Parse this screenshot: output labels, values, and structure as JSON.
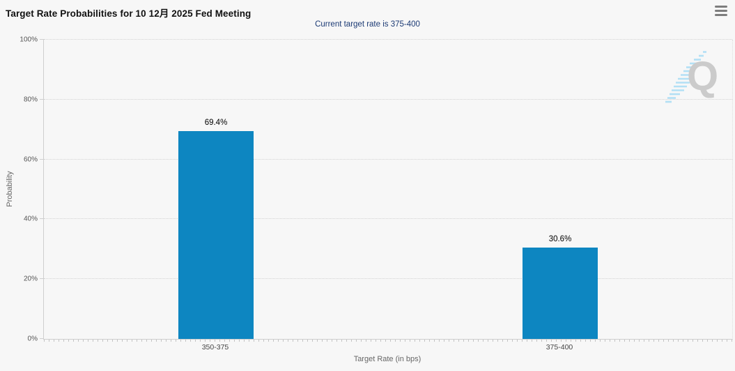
{
  "header": {
    "title": "Target Rate Probabilities for 10 12月 2025 Fed Meeting",
    "subtitle": "Current target rate is 375-400",
    "menu_icon": "hamburger-menu-icon"
  },
  "watermark_letter": "Q",
  "colors": {
    "background": "#f7f7f7",
    "bar": "#0d86c1",
    "subtitle_text": "#1b3a74",
    "axis_line": "#cfcfcf",
    "watermark_gray": "#cbcbcb",
    "watermark_blue": "#b3e0f5"
  },
  "chart_data": {
    "type": "bar",
    "title": "Target Rate Probabilities for 10 12月 2025 Fed Meeting",
    "subtitle": "Current target rate is 375-400",
    "categories": [
      "350-375",
      "375-400"
    ],
    "values": [
      69.4,
      30.6
    ],
    "value_labels": [
      "69.4%",
      "30.6%"
    ],
    "xlabel": "Target Rate (in bps)",
    "ylabel": "Probability",
    "ylim": [
      0,
      100
    ],
    "y_ticks": [
      "0%",
      "20%",
      "40%",
      "60%",
      "80%",
      "100%"
    ],
    "grid": "dotted-horizontal",
    "legend": "none",
    "bar_color": "#0d86c1"
  }
}
